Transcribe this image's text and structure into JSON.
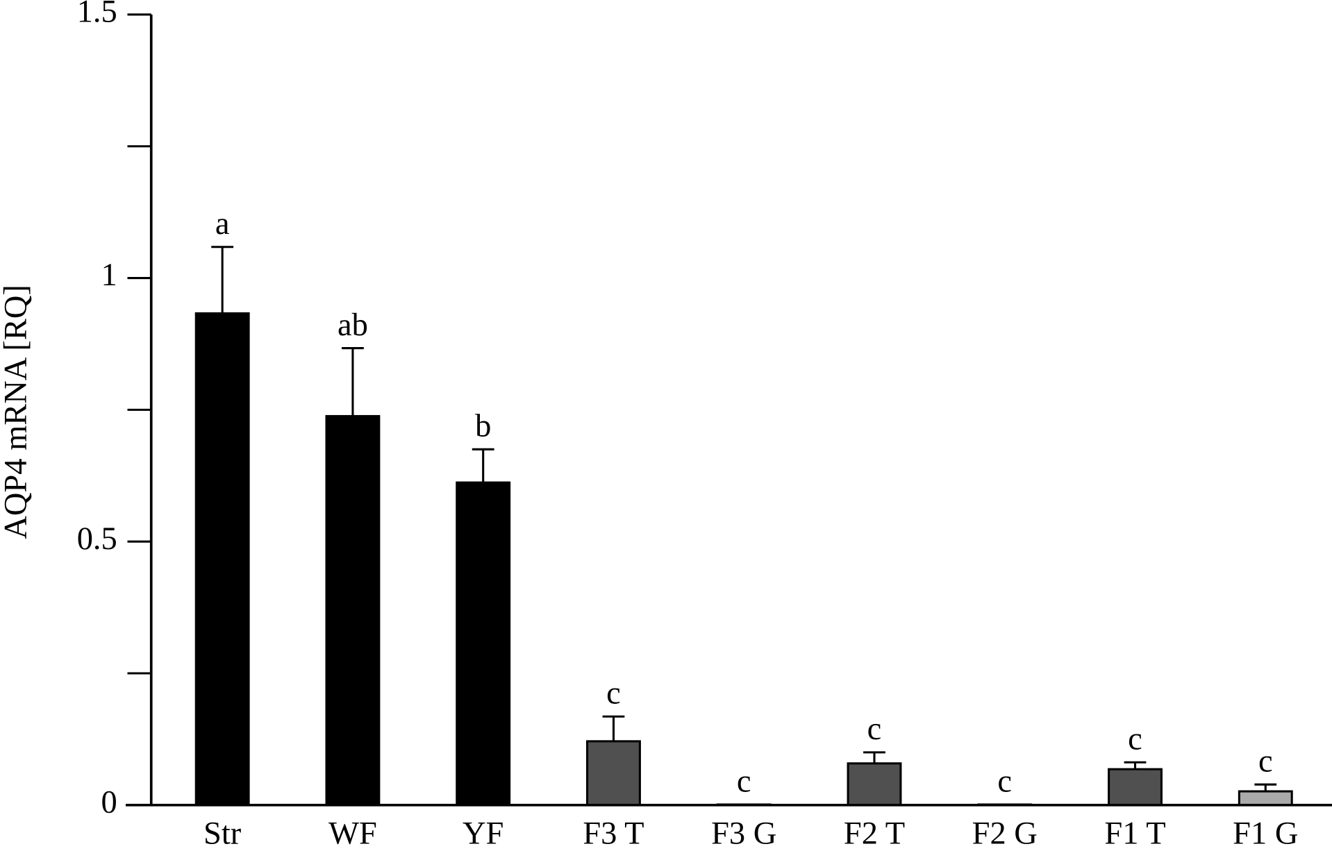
{
  "chart_data": {
    "type": "bar",
    "y_label": "AQP4 mRNA [RQ]",
    "categories": [
      "Str",
      "WF",
      "YF",
      "F3 T",
      "F3 G",
      "F2 T",
      "F2 G",
      "F1 T",
      "F1 G"
    ],
    "values": [
      0.933,
      0.738,
      0.612,
      0.121,
      0.001,
      0.079,
      0.001,
      0.068,
      0.026
    ],
    "errors": [
      0.126,
      0.129,
      0.063,
      0.047,
      0,
      0.021,
      0,
      0.013,
      0.013
    ],
    "letters": [
      "a",
      "ab",
      "b",
      "c",
      "c",
      "c",
      "c",
      "c",
      "c"
    ],
    "colors": [
      "#000000",
      "#000000",
      "#000000",
      "#505050",
      "#505050",
      "#505050",
      "#505050",
      "#505050",
      "#aaaaaa"
    ],
    "ylim": [
      0,
      1.5
    ],
    "yticks": [
      0,
      0.5,
      1,
      1.5
    ],
    "yminor_ticks": [
      0.25,
      0.75,
      1.25
    ]
  }
}
